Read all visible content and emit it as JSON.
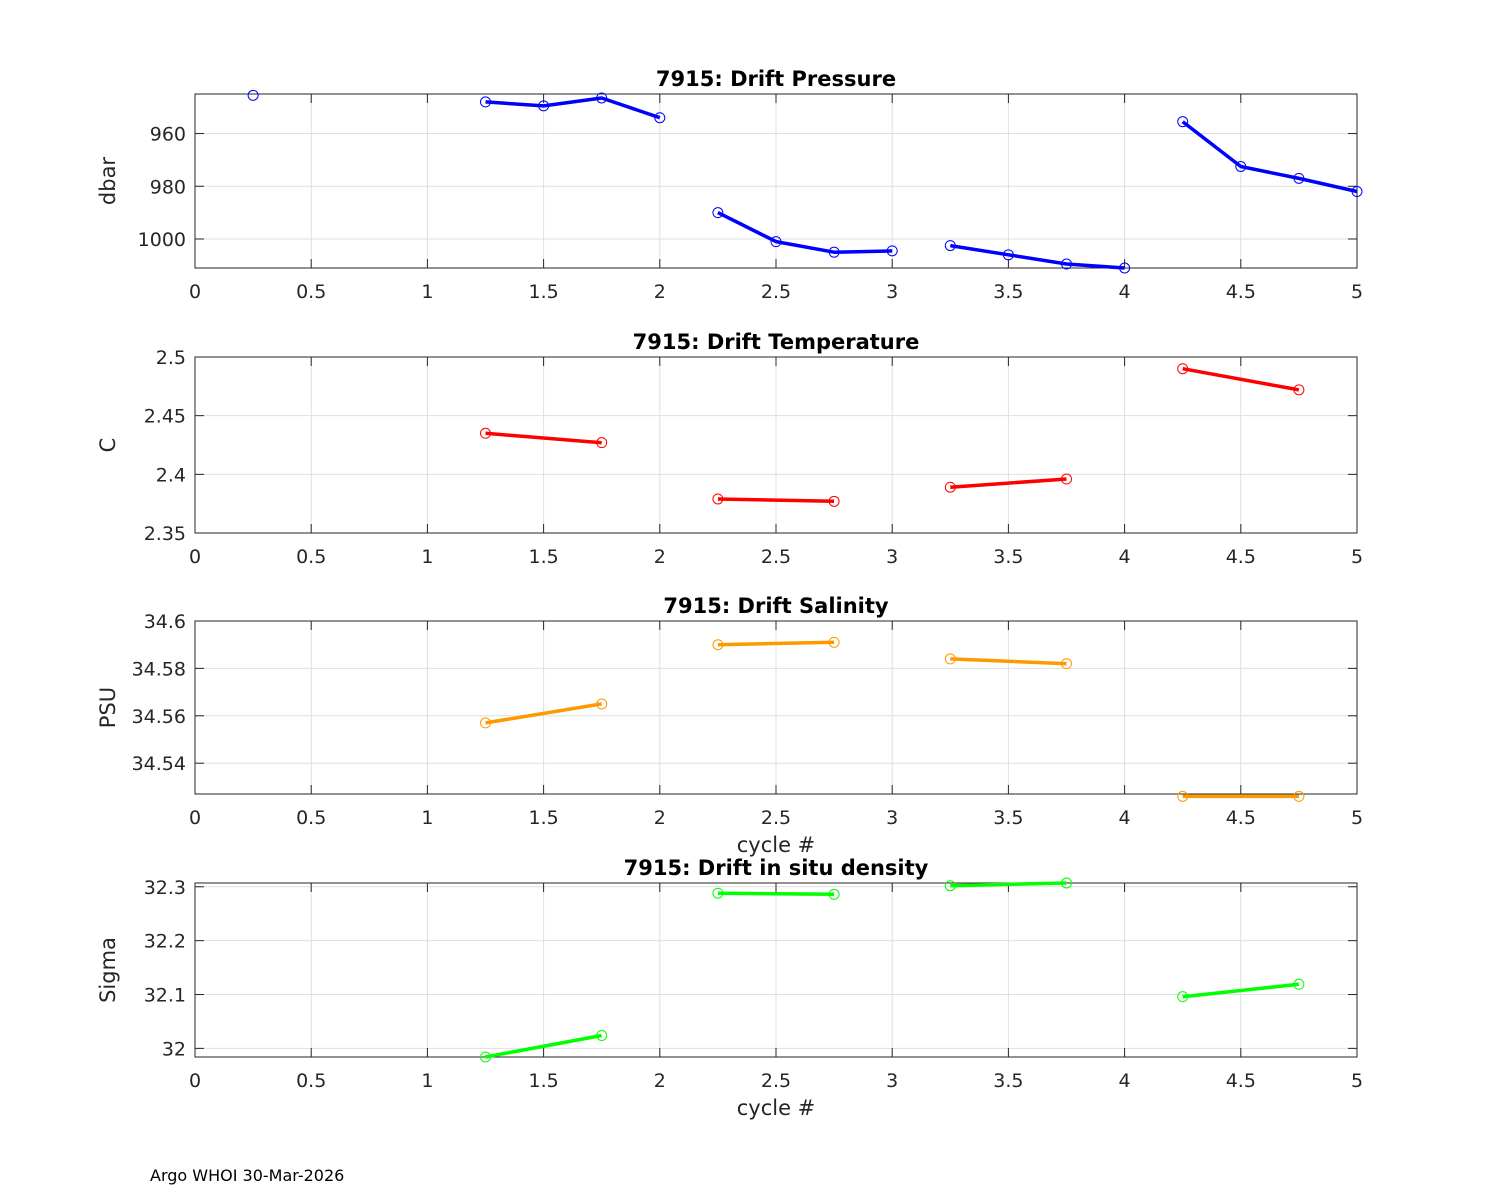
{
  "footer": "Argo WHOI 30-Mar-2026",
  "chart_data": [
    {
      "type": "line",
      "title": "7915: Drift Pressure",
      "xlabel": "",
      "ylabel": "dbar",
      "xlim": [
        0,
        5
      ],
      "ylim": [
        945,
        1011
      ],
      "yreverse": true,
      "xticks": [
        0,
        0.5,
        1,
        1.5,
        2,
        2.5,
        3,
        3.5,
        4,
        4.5,
        5
      ],
      "xtick_labels": [
        "0",
        "0.5",
        "1",
        "1.5",
        "2",
        "2.5",
        "3",
        "3.5",
        "4",
        "4.5",
        "5"
      ],
      "yticks": [
        960,
        980,
        1000
      ],
      "ytick_labels": [
        "960",
        "980",
        "1000"
      ],
      "grid": true,
      "color": "#0000ff",
      "marker_color": "#0000ff",
      "segments": [
        {
          "x": [
            0.25
          ],
          "y": [
            945.5
          ]
        },
        {
          "x": [
            1.25,
            1.5,
            1.75,
            2.0
          ],
          "y": [
            948.0,
            949.5,
            946.5,
            954.0
          ]
        },
        {
          "x": [
            2.25,
            2.5,
            2.75,
            3.0
          ],
          "y": [
            990.0,
            1001.0,
            1005.0,
            1004.5
          ]
        },
        {
          "x": [
            3.25,
            3.5,
            3.75,
            4.0
          ],
          "y": [
            1002.5,
            1006.0,
            1009.5,
            1011.0
          ]
        },
        {
          "x": [
            4.25,
            4.5,
            4.75,
            5.0
          ],
          "y": [
            955.5,
            972.5,
            977.0,
            982.0
          ]
        }
      ]
    },
    {
      "type": "line",
      "title": "7915: Drift Temperature",
      "xlabel": "",
      "ylabel": "C",
      "xlim": [
        0,
        5
      ],
      "ylim": [
        2.35,
        2.5
      ],
      "yreverse": false,
      "xticks": [
        0,
        0.5,
        1,
        1.5,
        2,
        2.5,
        3,
        3.5,
        4,
        4.5,
        5
      ],
      "xtick_labels": [
        "0",
        "0.5",
        "1",
        "1.5",
        "2",
        "2.5",
        "3",
        "3.5",
        "4",
        "4.5",
        "5"
      ],
      "yticks": [
        2.35,
        2.4,
        2.45,
        2.5
      ],
      "ytick_labels": [
        "2.35",
        "2.4",
        "2.45",
        "2.5"
      ],
      "grid": true,
      "color": "#ff0000",
      "marker_color": "#ff0000",
      "segments": [
        {
          "x": [
            1.25,
            1.75
          ],
          "y": [
            2.435,
            2.427
          ]
        },
        {
          "x": [
            2.25,
            2.75
          ],
          "y": [
            2.379,
            2.377
          ]
        },
        {
          "x": [
            3.25,
            3.75
          ],
          "y": [
            2.389,
            2.396
          ]
        },
        {
          "x": [
            4.25,
            4.75
          ],
          "y": [
            2.49,
            2.472
          ]
        }
      ]
    },
    {
      "type": "line",
      "title": "7915: Drift Salinity",
      "xlabel": "cycle #",
      "ylabel": "PSU",
      "xlim": [
        0,
        5
      ],
      "ylim": [
        34.527,
        34.6
      ],
      "yreverse": false,
      "xticks": [
        0,
        0.5,
        1,
        1.5,
        2,
        2.5,
        3,
        3.5,
        4,
        4.5,
        5
      ],
      "xtick_labels": [
        "0",
        "0.5",
        "1",
        "1.5",
        "2",
        "2.5",
        "3",
        "3.5",
        "4",
        "4.5",
        "5"
      ],
      "yticks": [
        34.54,
        34.56,
        34.58,
        34.6
      ],
      "ytick_labels": [
        "34.54",
        "34.56",
        "34.58",
        "34.6"
      ],
      "grid": true,
      "color": "#ff9900",
      "marker_color": "#ff9900",
      "segments": [
        {
          "x": [
            1.25,
            1.75
          ],
          "y": [
            34.557,
            34.565
          ]
        },
        {
          "x": [
            2.25,
            2.75
          ],
          "y": [
            34.59,
            34.591
          ]
        },
        {
          "x": [
            3.25,
            3.75
          ],
          "y": [
            34.584,
            34.582
          ]
        },
        {
          "x": [
            4.25,
            4.75
          ],
          "y": [
            34.526,
            34.526
          ]
        }
      ]
    },
    {
      "type": "line",
      "title": "7915: Drift in situ density",
      "xlabel": "cycle #",
      "ylabel": "Sigma",
      "xlim": [
        0,
        5
      ],
      "ylim": [
        31.984,
        32.307
      ],
      "yreverse": false,
      "xticks": [
        0,
        0.5,
        1,
        1.5,
        2,
        2.5,
        3,
        3.5,
        4,
        4.5,
        5
      ],
      "xtick_labels": [
        "0",
        "0.5",
        "1",
        "1.5",
        "2",
        "2.5",
        "3",
        "3.5",
        "4",
        "4.5",
        "5"
      ],
      "yticks": [
        32,
        32.1,
        32.2,
        32.3
      ],
      "ytick_labels": [
        "32",
        "32.1",
        "32.2",
        "32.3"
      ],
      "grid": true,
      "color": "#00ff00",
      "marker_color": "#00ff00",
      "segments": [
        {
          "x": [
            1.25,
            1.75
          ],
          "y": [
            31.984,
            32.024
          ]
        },
        {
          "x": [
            2.25,
            2.75
          ],
          "y": [
            32.288,
            32.286
          ]
        },
        {
          "x": [
            3.25,
            3.75
          ],
          "y": [
            32.302,
            32.307
          ]
        },
        {
          "x": [
            4.25,
            4.75
          ],
          "y": [
            32.096,
            32.119
          ]
        }
      ]
    }
  ]
}
